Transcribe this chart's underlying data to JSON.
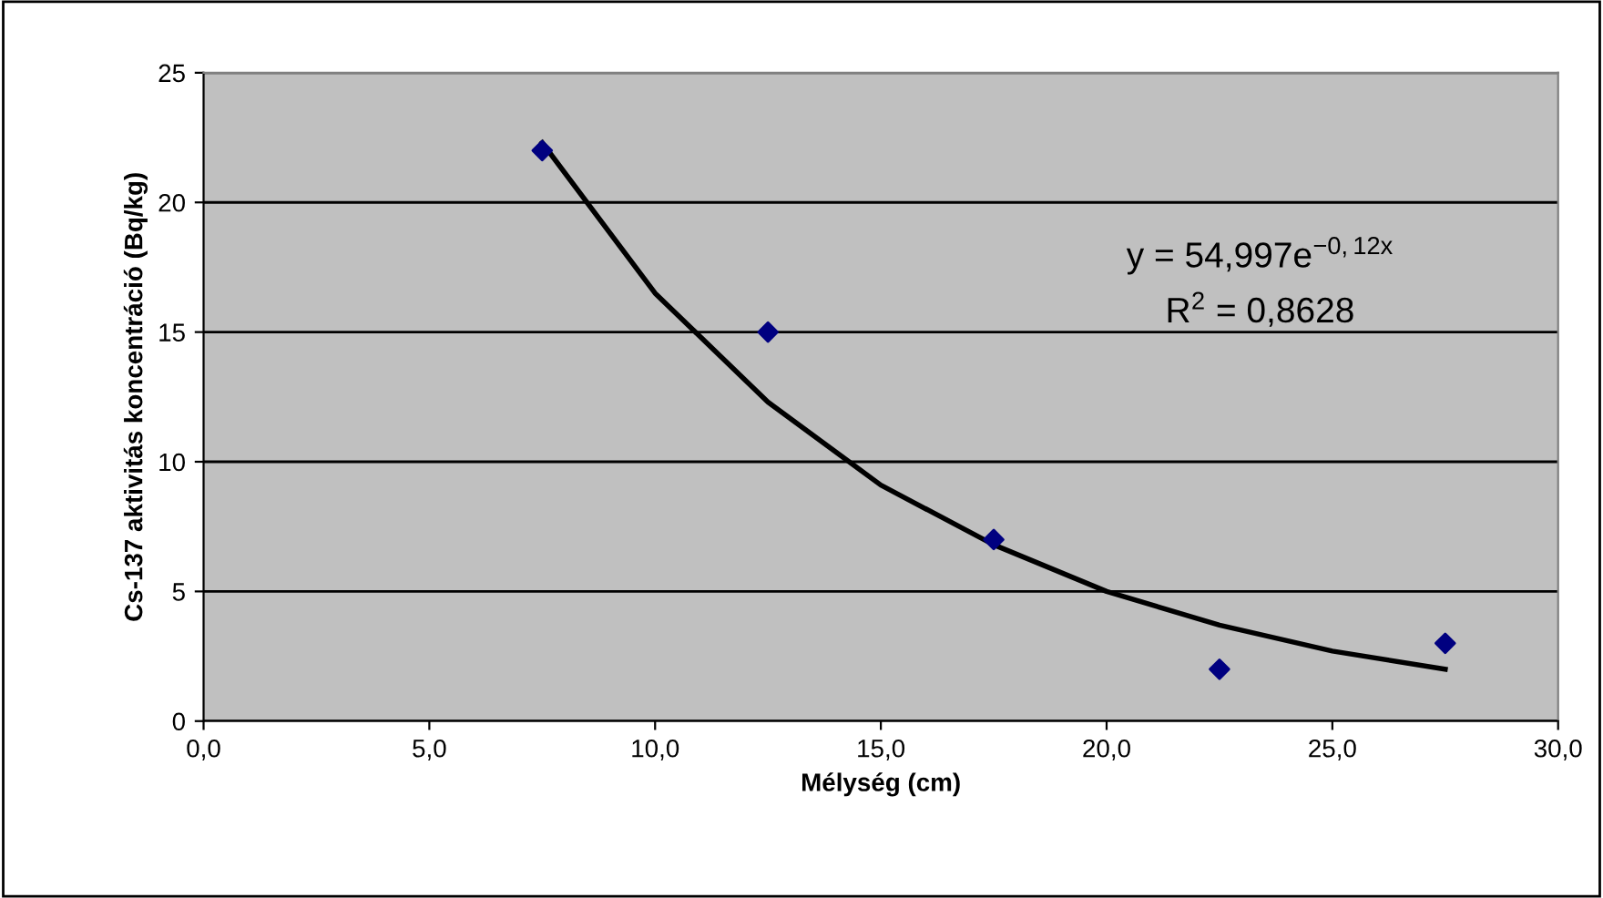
{
  "chart_data": {
    "type": "scatter",
    "xlabel": "Mélység (cm)",
    "ylabel": "Cs-137 aktivitás koncentráció (Bq/kg)",
    "xlim": [
      0,
      30
    ],
    "xticks": [
      {
        "value": 0,
        "label": "0,0"
      },
      {
        "value": 5,
        "label": "5,0"
      },
      {
        "value": 10,
        "label": "10,0"
      },
      {
        "value": 15,
        "label": "15,0"
      },
      {
        "value": 20,
        "label": "20,0"
      },
      {
        "value": 25,
        "label": "25,0"
      },
      {
        "value": 30,
        "label": "30,0"
      }
    ],
    "ylim": [
      0,
      25
    ],
    "yticks": [
      0,
      5,
      10,
      15,
      20,
      25
    ],
    "grid": "y",
    "legend": false,
    "series": [
      {
        "color": "#000080",
        "marker": "diamond",
        "x": [
          7.5,
          12.5,
          17.5,
          22.5,
          27.5
        ],
        "values": [
          22,
          15,
          7,
          2,
          3
        ]
      },
      {
        "type": "line",
        "color": "#000000",
        "marker": "none",
        "line_style": "solid",
        "x": [
          7.5,
          10,
          12.5,
          15,
          17.5,
          20,
          22.5,
          25,
          27.5
        ],
        "values": [
          22.3,
          16.5,
          12.3,
          9.1,
          6.8,
          5.0,
          3.7,
          2.7,
          2.0
        ]
      }
    ],
    "annotations": [
      "y = 54,997e$^{−0,12x}$",
      "R$^{2}$ = 0,8628"
    ]
  }
}
